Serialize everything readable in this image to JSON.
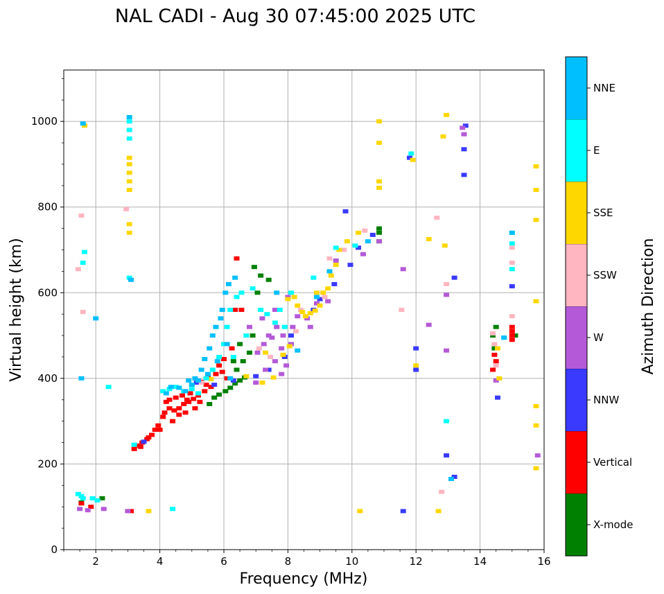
{
  "chart_data": {
    "type": "scatter",
    "title": "NAL CADI - Aug 30 07:45:00 2025 UTC",
    "xlabel": "Frequency (MHz)",
    "ylabel": "Virtual height (km)",
    "xlim": [
      1,
      16
    ],
    "ylim": [
      0,
      1120
    ],
    "xticks": [
      2,
      4,
      6,
      8,
      10,
      12,
      14,
      16
    ],
    "yticks": [
      0,
      200,
      400,
      600,
      800,
      1000
    ],
    "grid": true,
    "colorbar": {
      "label": "Azimuth Direction",
      "categories": [
        "X-mode",
        "Vertical",
        "NNW",
        "W",
        "SSW",
        "SSE",
        "E",
        "NNE"
      ],
      "colors": [
        "#008000",
        "#ff0000",
        "#3a3aff",
        "#b45ad8",
        "#ffb6c1",
        "#ffd700",
        "#00ffff",
        "#00bfff"
      ]
    },
    "series": [
      {
        "name": "X-mode",
        "points": [
          [
            5.55,
            340
          ],
          [
            5.7,
            355
          ],
          [
            5.85,
            362
          ],
          [
            6.05,
            370
          ],
          [
            6.2,
            378
          ],
          [
            6.35,
            388
          ],
          [
            6.5,
            395
          ],
          [
            6.65,
            402
          ],
          [
            6.4,
            420
          ],
          [
            6.3,
            440
          ],
          [
            6.6,
            440
          ],
          [
            6.8,
            460
          ],
          [
            6.5,
            480
          ],
          [
            6.9,
            500
          ],
          [
            7.05,
            600
          ],
          [
            7.15,
            640
          ],
          [
            7.4,
            630
          ],
          [
            6.95,
            660
          ],
          [
            10.85,
            740
          ],
          [
            10.85,
            720
          ],
          [
            10.85,
            750
          ],
          [
            14.4,
            500
          ],
          [
            14.5,
            520
          ],
          [
            14.45,
            470
          ],
          [
            15.1,
            500
          ],
          [
            1.55,
            110
          ],
          [
            2.2,
            120
          ]
        ]
      },
      {
        "name": "Vertical",
        "points": [
          [
            3.2,
            235
          ],
          [
            3.3,
            243
          ],
          [
            3.45,
            250
          ],
          [
            3.6,
            258
          ],
          [
            3.75,
            268
          ],
          [
            3.85,
            280
          ],
          [
            3.95,
            290
          ],
          [
            4.1,
            310
          ],
          [
            4.15,
            320
          ],
          [
            4.3,
            330
          ],
          [
            4.45,
            325
          ],
          [
            4.6,
            330
          ],
          [
            4.75,
            340
          ],
          [
            4.9,
            345
          ],
          [
            5.05,
            352
          ],
          [
            4.3,
            350
          ],
          [
            4.5,
            355
          ],
          [
            4.7,
            360
          ],
          [
            4.85,
            350
          ],
          [
            4.6,
            315
          ],
          [
            4.2,
            345
          ],
          [
            5.2,
            360
          ],
          [
            5.4,
            370
          ],
          [
            5.6,
            380
          ],
          [
            5.3,
            392
          ],
          [
            5.5,
            405
          ],
          [
            5.75,
            410
          ],
          [
            5.85,
            430
          ],
          [
            5.95,
            415
          ],
          [
            6.1,
            400
          ],
          [
            6.35,
            560
          ],
          [
            6.55,
            560
          ],
          [
            6.4,
            680
          ],
          [
            6.25,
            470
          ],
          [
            4.0,
            280
          ],
          [
            4.4,
            300
          ],
          [
            4.8,
            320
          ],
          [
            5.1,
            330
          ],
          [
            5.25,
            345
          ],
          [
            4.95,
            365
          ],
          [
            3.4,
            240
          ],
          [
            3.65,
            262
          ],
          [
            5.45,
            385
          ],
          [
            6.0,
            445
          ],
          [
            1.55,
            108
          ],
          [
            1.85,
            100
          ],
          [
            3.1,
            90
          ],
          [
            14.45,
            455
          ],
          [
            14.5,
            440
          ],
          [
            14.4,
            420
          ],
          [
            15.0,
            490
          ],
          [
            15.0,
            500
          ],
          [
            15.0,
            510
          ],
          [
            15.0,
            520
          ]
        ]
      },
      {
        "name": "NNW",
        "points": [
          [
            3.5,
            252
          ],
          [
            5.15,
            390
          ],
          [
            5.7,
            385
          ],
          [
            6.3,
            395
          ],
          [
            7.4,
            420
          ],
          [
            7.9,
            450
          ],
          [
            8.8,
            560
          ],
          [
            9.0,
            585
          ],
          [
            9.45,
            620
          ],
          [
            9.95,
            665
          ],
          [
            10.2,
            705
          ],
          [
            9.8,
            790
          ],
          [
            10.65,
            735
          ],
          [
            11.6,
            90
          ],
          [
            11.8,
            915
          ],
          [
            12.0,
            470
          ],
          [
            12.0,
            420
          ],
          [
            12.95,
            220
          ],
          [
            13.2,
            170
          ],
          [
            13.2,
            635
          ],
          [
            13.5,
            935
          ],
          [
            13.5,
            875
          ],
          [
            13.55,
            990
          ],
          [
            14.55,
            355
          ],
          [
            15.0,
            615
          ],
          [
            7.0,
            405
          ],
          [
            8.1,
            500
          ]
        ]
      },
      {
        "name": "W",
        "points": [
          [
            1.5,
            95
          ],
          [
            1.75,
            92
          ],
          [
            2.25,
            95
          ],
          [
            3.0,
            90
          ],
          [
            7.05,
            460
          ],
          [
            7.25,
            480
          ],
          [
            7.5,
            495
          ],
          [
            7.65,
            520
          ],
          [
            7.8,
            470
          ],
          [
            7.95,
            430
          ],
          [
            7.6,
            440
          ],
          [
            7.8,
            410
          ],
          [
            8.1,
            480
          ],
          [
            8.15,
            520
          ],
          [
            8.3,
            545
          ],
          [
            8.6,
            540
          ],
          [
            8.9,
            575
          ],
          [
            9.25,
            580
          ],
          [
            7.4,
            500
          ],
          [
            7.3,
            420
          ],
          [
            7.0,
            390
          ],
          [
            6.8,
            520
          ],
          [
            7.6,
            560
          ],
          [
            8.7,
            520
          ],
          [
            9.5,
            675
          ],
          [
            10.35,
            690
          ],
          [
            10.85,
            720
          ],
          [
            11.6,
            655
          ],
          [
            12.4,
            525
          ],
          [
            12.95,
            465
          ],
          [
            12.95,
            595
          ],
          [
            13.45,
            985
          ],
          [
            13.5,
            970
          ],
          [
            14.5,
            395
          ],
          [
            15.8,
            220
          ],
          [
            7.2,
            540
          ],
          [
            8.0,
            590
          ],
          [
            7.85,
            500
          ]
        ]
      },
      {
        "name": "SSW",
        "points": [
          [
            1.45,
            655
          ],
          [
            1.55,
            780
          ],
          [
            1.6,
            555
          ],
          [
            2.95,
            795
          ],
          [
            5.3,
            390
          ],
          [
            7.45,
            450
          ],
          [
            8.25,
            510
          ],
          [
            9.15,
            590
          ],
          [
            9.75,
            700
          ],
          [
            10.4,
            745
          ],
          [
            11.55,
            560
          ],
          [
            12.65,
            775
          ],
          [
            12.8,
            135
          ],
          [
            12.95,
            620
          ],
          [
            14.45,
            480
          ],
          [
            14.4,
            505
          ],
          [
            14.5,
            430
          ],
          [
            15.0,
            545
          ],
          [
            15.0,
            670
          ],
          [
            15.0,
            705
          ],
          [
            7.1,
            470
          ],
          [
            8.4,
            560
          ],
          [
            9.3,
            680
          ]
        ]
      },
      {
        "name": "SSE",
        "points": [
          [
            3.05,
            840
          ],
          [
            3.05,
            860
          ],
          [
            3.05,
            880
          ],
          [
            3.05,
            900
          ],
          [
            3.05,
            915
          ],
          [
            3.05,
            760
          ],
          [
            3.05,
            740
          ],
          [
            3.65,
            90
          ],
          [
            5.6,
            398
          ],
          [
            6.7,
            405
          ],
          [
            7.2,
            390
          ],
          [
            7.55,
            402
          ],
          [
            7.85,
            455
          ],
          [
            8.05,
            475
          ],
          [
            8.3,
            570
          ],
          [
            8.45,
            555
          ],
          [
            8.55,
            545
          ],
          [
            8.7,
            552
          ],
          [
            8.85,
            558
          ],
          [
            9.0,
            570
          ],
          [
            9.1,
            600
          ],
          [
            9.25,
            610
          ],
          [
            9.35,
            640
          ],
          [
            9.5,
            665
          ],
          [
            8.2,
            590
          ],
          [
            8.0,
            585
          ],
          [
            9.6,
            700
          ],
          [
            9.85,
            720
          ],
          [
            10.2,
            740
          ],
          [
            10.85,
            1000
          ],
          [
            10.85,
            950
          ],
          [
            10.85,
            860
          ],
          [
            10.85,
            845
          ],
          [
            11.9,
            910
          ],
          [
            12.0,
            430
          ],
          [
            12.4,
            725
          ],
          [
            12.7,
            90
          ],
          [
            12.85,
            965
          ],
          [
            12.9,
            710
          ],
          [
            12.95,
            1015
          ],
          [
            14.55,
            470
          ],
          [
            14.6,
            400
          ],
          [
            15.75,
            895
          ],
          [
            15.75,
            840
          ],
          [
            15.75,
            770
          ],
          [
            15.75,
            580
          ],
          [
            15.75,
            335
          ],
          [
            15.75,
            290
          ],
          [
            15.75,
            190
          ],
          [
            10.25,
            90
          ],
          [
            1.65,
            990
          ],
          [
            7.3,
            460
          ],
          [
            8.9,
            600
          ]
        ]
      },
      {
        "name": "E",
        "points": [
          [
            1.45,
            130
          ],
          [
            1.55,
            125
          ],
          [
            1.6,
            120
          ],
          [
            1.65,
            695
          ],
          [
            1.6,
            670
          ],
          [
            1.9,
            120
          ],
          [
            2.05,
            115
          ],
          [
            2.4,
            380
          ],
          [
            3.05,
            1000
          ],
          [
            3.05,
            980
          ],
          [
            3.05,
            960
          ],
          [
            3.05,
            635
          ],
          [
            3.2,
            245
          ],
          [
            4.4,
            95
          ],
          [
            4.1,
            370
          ],
          [
            4.3,
            375
          ],
          [
            4.5,
            380
          ],
          [
            4.75,
            370
          ],
          [
            5.0,
            375
          ],
          [
            5.2,
            365
          ],
          [
            5.45,
            400
          ],
          [
            5.65,
            420
          ],
          [
            5.85,
            450
          ],
          [
            6.0,
            480
          ],
          [
            6.1,
            520
          ],
          [
            6.2,
            560
          ],
          [
            6.4,
            590
          ],
          [
            6.55,
            600
          ],
          [
            6.9,
            610
          ],
          [
            7.15,
            560
          ],
          [
            7.35,
            550
          ],
          [
            7.6,
            530
          ],
          [
            7.9,
            520
          ],
          [
            8.1,
            600
          ],
          [
            8.8,
            635
          ],
          [
            9.5,
            705
          ],
          [
            10.1,
            710
          ],
          [
            11.85,
            925
          ],
          [
            12.95,
            300
          ],
          [
            14.75,
            495
          ],
          [
            15.0,
            655
          ],
          [
            15.0,
            715
          ],
          [
            15.0,
            740
          ],
          [
            6.3,
            450
          ],
          [
            6.7,
            500
          ],
          [
            7.75,
            560
          ]
        ]
      },
      {
        "name": "NNE",
        "points": [
          [
            1.55,
            400
          ],
          [
            1.6,
            995
          ],
          [
            2.0,
            540
          ],
          [
            3.05,
            1010
          ],
          [
            3.1,
            630
          ],
          [
            4.2,
            365
          ],
          [
            4.35,
            380
          ],
          [
            4.6,
            378
          ],
          [
            4.8,
            370
          ],
          [
            5.0,
            385
          ],
          [
            5.2,
            395
          ],
          [
            5.3,
            420
          ],
          [
            5.4,
            445
          ],
          [
            5.55,
            470
          ],
          [
            5.65,
            500
          ],
          [
            5.75,
            520
          ],
          [
            5.9,
            540
          ],
          [
            6.05,
            600
          ],
          [
            6.15,
            620
          ],
          [
            6.35,
            635
          ],
          [
            5.8,
            440
          ],
          [
            5.5,
            410
          ],
          [
            5.1,
            400
          ],
          [
            6.1,
            480
          ],
          [
            7.65,
            600
          ],
          [
            8.3,
            465
          ],
          [
            8.9,
            590
          ],
          [
            9.3,
            650
          ],
          [
            10.5,
            720
          ],
          [
            13.1,
            165
          ],
          [
            14.75,
            495
          ],
          [
            15.0,
            740
          ],
          [
            5.95,
            560
          ],
          [
            6.2,
            400
          ],
          [
            4.9,
            395
          ]
        ]
      }
    ]
  }
}
